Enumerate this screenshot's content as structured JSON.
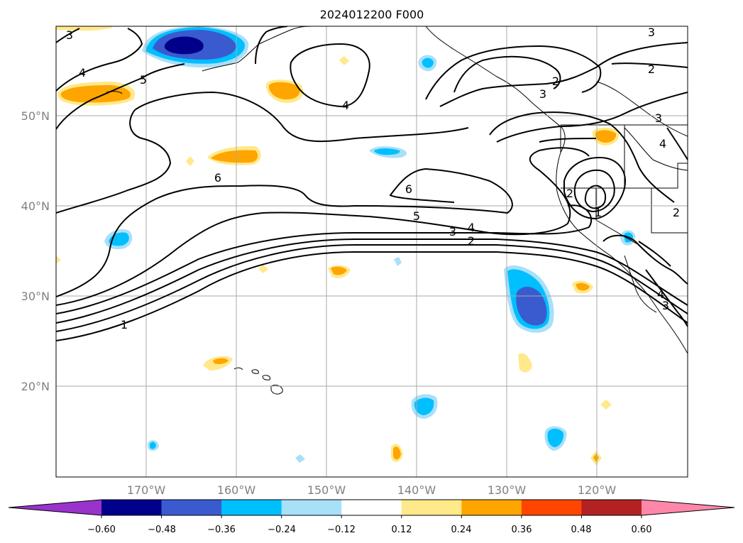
{
  "title": "2024012200 F000",
  "map": {
    "lon_labels": [
      "170°W",
      "160°W",
      "150°W",
      "140°W",
      "130°W",
      "120°W"
    ],
    "lat_labels": [
      "50°N",
      "40°N",
      "30°N",
      "20°N"
    ],
    "contour_labels": [
      "3",
      "4",
      "5",
      "4",
      "6",
      "6",
      "5",
      "3",
      "4",
      "2",
      "1",
      "2",
      "3",
      "3",
      "2",
      "2",
      "1",
      "3",
      "4",
      "2",
      "4",
      "3"
    ]
  },
  "colorbar": {
    "ticks": [
      "−0.60",
      "−0.48",
      "−0.36",
      "−0.24",
      "−0.12",
      "0.12",
      "0.24",
      "0.36",
      "0.48",
      "0.60"
    ],
    "colors": [
      "#9933cc",
      "#00008b",
      "#3a5bcf",
      "#00bfff",
      "#a8e0f8",
      "#ffffff",
      "#ffe98a",
      "#ffa500",
      "#ff4500",
      "#b22222",
      "#ff88aa"
    ]
  }
}
